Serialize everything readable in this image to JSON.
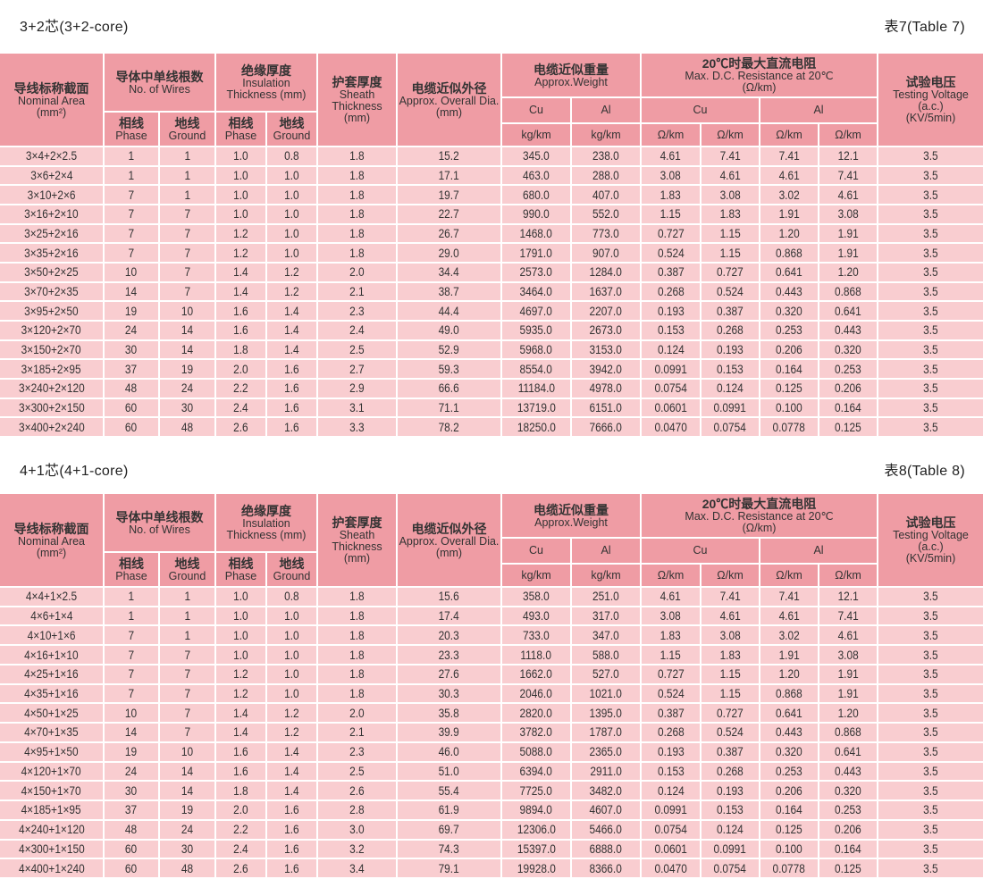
{
  "colors": {
    "header_bg": "#ef9ca4",
    "row_bg": "#f9cdd0",
    "text": "#333333"
  },
  "header": {
    "nominal": {
      "zh": "导线标称截面",
      "en": "Nominal Area\n(mm²)"
    },
    "wires": {
      "zh": "导体中单线根数",
      "en": "No. of Wires"
    },
    "insulation": {
      "zh": "绝缘厚度",
      "en": "Insulation\nThickness (mm)"
    },
    "phase": {
      "zh": "相线",
      "en": "Phase"
    },
    "ground": {
      "zh": "地线",
      "en": "Ground"
    },
    "sheath": {
      "zh": "护套厚度",
      "en": "Sheath\nThickness\n(mm)"
    },
    "diameter": {
      "zh": "电缆近似外径",
      "en": "Approx. Overall Dia.\n(mm)"
    },
    "weight": {
      "zh": "电缆近似重量",
      "en": "Approx.Weight"
    },
    "resistance": {
      "zh": "20℃时最大直流电阻",
      "en": "Max. D.C. Resistance at 20℃\n(Ω/km)"
    },
    "cu": {
      "en": "Cu"
    },
    "al": {
      "en": "Al"
    },
    "kgkm": {
      "en": "kg/km"
    },
    "ohmkm": {
      "en": "Ω/km"
    },
    "voltage": {
      "zh": "试验电压",
      "en": "Testing Voltage\n(a.c.)\n(KV/5min)"
    }
  },
  "tables": [
    {
      "title": "3+2芯(3+2-core)",
      "label": "表7(Table 7)",
      "rows": [
        [
          "3×4+2×2.5",
          "1",
          "1",
          "1.0",
          "0.8",
          "1.8",
          "15.2",
          "345.0",
          "238.0",
          "4.61",
          "7.41",
          "7.41",
          "12.1",
          "3.5"
        ],
        [
          "3×6+2×4",
          "1",
          "1",
          "1.0",
          "1.0",
          "1.8",
          "17.1",
          "463.0",
          "288.0",
          "3.08",
          "4.61",
          "4.61",
          "7.41",
          "3.5"
        ],
        [
          "3×10+2×6",
          "7",
          "1",
          "1.0",
          "1.0",
          "1.8",
          "19.7",
          "680.0",
          "407.0",
          "1.83",
          "3.08",
          "3.02",
          "4.61",
          "3.5"
        ],
        [
          "3×16+2×10",
          "7",
          "7",
          "1.0",
          "1.0",
          "1.8",
          "22.7",
          "990.0",
          "552.0",
          "1.15",
          "1.83",
          "1.91",
          "3.08",
          "3.5"
        ],
        [
          "3×25+2×16",
          "7",
          "7",
          "1.2",
          "1.0",
          "1.8",
          "26.7",
          "1468.0",
          "773.0",
          "0.727",
          "1.15",
          "1.20",
          "1.91",
          "3.5"
        ],
        [
          "3×35+2×16",
          "7",
          "7",
          "1.2",
          "1.0",
          "1.8",
          "29.0",
          "1791.0",
          "907.0",
          "0.524",
          "1.15",
          "0.868",
          "1.91",
          "3.5"
        ],
        [
          "3×50+2×25",
          "10",
          "7",
          "1.4",
          "1.2",
          "2.0",
          "34.4",
          "2573.0",
          "1284.0",
          "0.387",
          "0.727",
          "0.641",
          "1.20",
          "3.5"
        ],
        [
          "3×70+2×35",
          "14",
          "7",
          "1.4",
          "1.2",
          "2.1",
          "38.7",
          "3464.0",
          "1637.0",
          "0.268",
          "0.524",
          "0.443",
          "0.868",
          "3.5"
        ],
        [
          "3×95+2×50",
          "19",
          "10",
          "1.6",
          "1.4",
          "2.3",
          "44.4",
          "4697.0",
          "2207.0",
          "0.193",
          "0.387",
          "0.320",
          "0.641",
          "3.5"
        ],
        [
          "3×120+2×70",
          "24",
          "14",
          "1.6",
          "1.4",
          "2.4",
          "49.0",
          "5935.0",
          "2673.0",
          "0.153",
          "0.268",
          "0.253",
          "0.443",
          "3.5"
        ],
        [
          "3×150+2×70",
          "30",
          "14",
          "1.8",
          "1.4",
          "2.5",
          "52.9",
          "5968.0",
          "3153.0",
          "0.124",
          "0.193",
          "0.206",
          "0.320",
          "3.5"
        ],
        [
          "3×185+2×95",
          "37",
          "19",
          "2.0",
          "1.6",
          "2.7",
          "59.3",
          "8554.0",
          "3942.0",
          "0.0991",
          "0.153",
          "0.164",
          "0.253",
          "3.5"
        ],
        [
          "3×240+2×120",
          "48",
          "24",
          "2.2",
          "1.6",
          "2.9",
          "66.6",
          "11184.0",
          "4978.0",
          "0.0754",
          "0.124",
          "0.125",
          "0.206",
          "3.5"
        ],
        [
          "3×300+2×150",
          "60",
          "30",
          "2.4",
          "1.6",
          "3.1",
          "71.1",
          "13719.0",
          "6151.0",
          "0.0601",
          "0.0991",
          "0.100",
          "0.164",
          "3.5"
        ],
        [
          "3×400+2×240",
          "60",
          "48",
          "2.6",
          "1.6",
          "3.3",
          "78.2",
          "18250.0",
          "7666.0",
          "0.0470",
          "0.0754",
          "0.0778",
          "0.125",
          "3.5"
        ]
      ]
    },
    {
      "title": "4+1芯(4+1-core)",
      "label": "表8(Table 8)",
      "rows": [
        [
          "4×4+1×2.5",
          "1",
          "1",
          "1.0",
          "0.8",
          "1.8",
          "15.6",
          "358.0",
          "251.0",
          "4.61",
          "7.41",
          "7.41",
          "12.1",
          "3.5"
        ],
        [
          "4×6+1×4",
          "1",
          "1",
          "1.0",
          "1.0",
          "1.8",
          "17.4",
          "493.0",
          "317.0",
          "3.08",
          "4.61",
          "4.61",
          "7.41",
          "3.5"
        ],
        [
          "4×10+1×6",
          "7",
          "1",
          "1.0",
          "1.0",
          "1.8",
          "20.3",
          "733.0",
          "347.0",
          "1.83",
          "3.08",
          "3.02",
          "4.61",
          "3.5"
        ],
        [
          "4×16+1×10",
          "7",
          "7",
          "1.0",
          "1.0",
          "1.8",
          "23.3",
          "1118.0",
          "588.0",
          "1.15",
          "1.83",
          "1.91",
          "3.08",
          "3.5"
        ],
        [
          "4×25+1×16",
          "7",
          "7",
          "1.2",
          "1.0",
          "1.8",
          "27.6",
          "1662.0",
          "527.0",
          "0.727",
          "1.15",
          "1.20",
          "1.91",
          "3.5"
        ],
        [
          "4×35+1×16",
          "7",
          "7",
          "1.2",
          "1.0",
          "1.8",
          "30.3",
          "2046.0",
          "1021.0",
          "0.524",
          "1.15",
          "0.868",
          "1.91",
          "3.5"
        ],
        [
          "4×50+1×25",
          "10",
          "7",
          "1.4",
          "1.2",
          "2.0",
          "35.8",
          "2820.0",
          "1395.0",
          "0.387",
          "0.727",
          "0.641",
          "1.20",
          "3.5"
        ],
        [
          "4×70+1×35",
          "14",
          "7",
          "1.4",
          "1.2",
          "2.1",
          "39.9",
          "3782.0",
          "1787.0",
          "0.268",
          "0.524",
          "0.443",
          "0.868",
          "3.5"
        ],
        [
          "4×95+1×50",
          "19",
          "10",
          "1.6",
          "1.4",
          "2.3",
          "46.0",
          "5088.0",
          "2365.0",
          "0.193",
          "0.387",
          "0.320",
          "0.641",
          "3.5"
        ],
        [
          "4×120+1×70",
          "24",
          "14",
          "1.6",
          "1.4",
          "2.5",
          "51.0",
          "6394.0",
          "2911.0",
          "0.153",
          "0.268",
          "0.253",
          "0.443",
          "3.5"
        ],
        [
          "4×150+1×70",
          "30",
          "14",
          "1.8",
          "1.4",
          "2.6",
          "55.4",
          "7725.0",
          "3482.0",
          "0.124",
          "0.193",
          "0.206",
          "0.320",
          "3.5"
        ],
        [
          "4×185+1×95",
          "37",
          "19",
          "2.0",
          "1.6",
          "2.8",
          "61.9",
          "9894.0",
          "4607.0",
          "0.0991",
          "0.153",
          "0.164",
          "0.253",
          "3.5"
        ],
        [
          "4×240+1×120",
          "48",
          "24",
          "2.2",
          "1.6",
          "3.0",
          "69.7",
          "12306.0",
          "5466.0",
          "0.0754",
          "0.124",
          "0.125",
          "0.206",
          "3.5"
        ],
        [
          "4×300+1×150",
          "60",
          "30",
          "2.4",
          "1.6",
          "3.2",
          "74.3",
          "15397.0",
          "6888.0",
          "0.0601",
          "0.0991",
          "0.100",
          "0.164",
          "3.5"
        ],
        [
          "4×400+1×240",
          "60",
          "48",
          "2.6",
          "1.6",
          "3.4",
          "79.1",
          "19928.0",
          "8366.0",
          "0.0470",
          "0.0754",
          "0.0778",
          "0.125",
          "3.5"
        ]
      ]
    }
  ]
}
